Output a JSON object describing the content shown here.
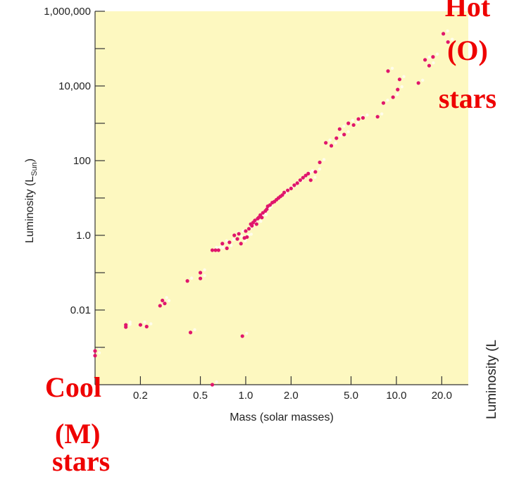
{
  "chart_data": {
    "type": "scatter",
    "title": "",
    "xlabel": "Mass (solar masses)",
    "ylabel": "Luminosity (L",
    "ylabel_sub": "Sun",
    "ylabel_close": ")",
    "x_scale": "log",
    "y_scale": "log",
    "xlim": [
      0.1,
      30
    ],
    "ylim": [
      0.0001,
      1000000
    ],
    "x_ticks": [
      {
        "value": 0.2,
        "label": "0.2"
      },
      {
        "value": 0.5,
        "label": "0.5"
      },
      {
        "value": 1.0,
        "label": "1.0"
      },
      {
        "value": 2.0,
        "label": "2.0"
      },
      {
        "value": 5.0,
        "label": "5.0"
      },
      {
        "value": 10.0,
        "label": "10.0"
      },
      {
        "value": 20.0,
        "label": "20.0"
      }
    ],
    "y_ticks": [
      {
        "value": 0.01,
        "label": "0.01"
      },
      {
        "value": 1,
        "label": "1.0"
      },
      {
        "value": 100,
        "label": "100"
      },
      {
        "value": 10000,
        "label": "10,000"
      },
      {
        "value": 1000000,
        "label": "1,000,000"
      }
    ],
    "y_minor_ticks": [
      0.001,
      0.1,
      10,
      1000,
      100000
    ],
    "grid": false,
    "plot_background": "#fdf8c0",
    "point_color": "#e0166c",
    "series": [
      {
        "x": [
          0.1,
          0.1,
          0.16,
          0.16,
          0.2,
          0.22,
          0.27,
          0.28,
          0.29,
          0.41,
          0.43,
          0.5,
          0.5,
          0.6,
          0.6,
          0.63,
          0.66,
          0.7,
          0.75,
          0.78,
          0.84,
          0.88,
          0.9,
          0.93,
          0.95,
          0.98,
          1.0,
          1.02,
          1.05,
          1.08,
          1.1,
          1.12,
          1.15,
          1.18,
          1.2,
          1.22,
          1.25,
          1.28,
          1.3,
          1.35,
          1.38,
          1.4,
          1.45,
          1.5,
          1.55,
          1.6,
          1.65,
          1.7,
          1.75,
          1.8,
          1.9,
          2.0,
          2.1,
          2.2,
          2.3,
          2.4,
          2.5,
          2.6,
          2.7,
          2.9,
          3.1,
          3.4,
          3.7,
          4.0,
          4.2,
          4.5,
          4.8,
          5.2,
          5.6,
          6.0,
          7.5,
          8.2,
          8.8,
          9.5,
          10.2,
          10.5,
          14.0,
          15.5,
          16.5,
          17.5,
          20.5,
          22.0
        ],
        "y": [
          0.0008,
          0.0006,
          0.004,
          0.0035,
          0.004,
          0.0036,
          0.013,
          0.018,
          0.015,
          0.06,
          0.0025,
          0.1,
          0.07,
          0.4,
          0.0001,
          0.4,
          0.4,
          0.6,
          0.45,
          0.65,
          1.0,
          0.8,
          1.1,
          0.6,
          0.002,
          0.85,
          1.3,
          0.9,
          1.5,
          2.0,
          1.8,
          2.2,
          2.5,
          2.0,
          2.8,
          3.0,
          3.5,
          3.0,
          4.0,
          4.5,
          5.0,
          6.0,
          6.5,
          7.5,
          8.0,
          9.0,
          10,
          11,
          12,
          14,
          16,
          18,
          22,
          25,
          30,
          35,
          40,
          45,
          30,
          50,
          90,
          300,
          250,
          400,
          700,
          500,
          1000,
          900,
          1300,
          1400,
          1500,
          3500,
          25000,
          5000,
          8000,
          15000,
          12000,
          50000,
          35000,
          60000,
          250000,
          150000
        ]
      }
    ]
  },
  "annotations": {
    "hot_line1": "Hot",
    "hot_line2": "(O)",
    "hot_line3": "stars",
    "cool_line1": "Cool",
    "cool_line2": "(M)",
    "cool_line3": "stars",
    "partial_label": "Luminosity (L"
  }
}
